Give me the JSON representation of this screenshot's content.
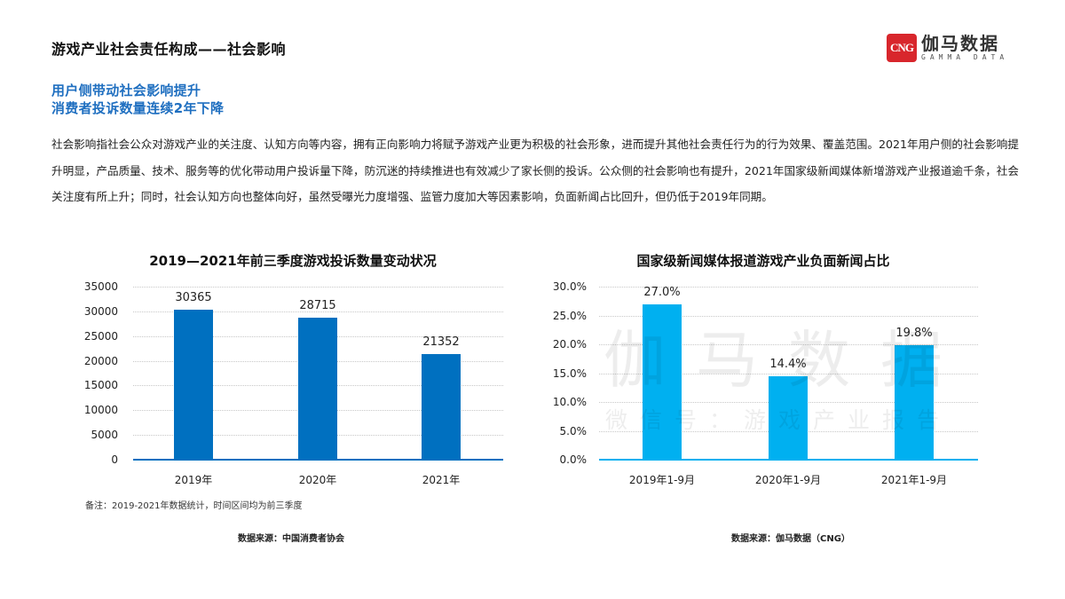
{
  "header": {
    "title": "游戏产业社会责任构成——社会影响",
    "subtitle_line1": "用户侧带动社会影响提升",
    "subtitle_line2": "消费者投诉数量连续2年下降"
  },
  "logo": {
    "mark": "CNG",
    "name_cn": "伽马数据",
    "name_en": "GAMMA DATA",
    "color": "#d8262c"
  },
  "body": {
    "paragraph": "社会影响指社会公众对游戏产业的关注度、认知方向等内容，拥有正向影响力将赋予游戏产业更为积极的社会形象，进而提升其他社会责任行为的行为效果、覆盖范围。2021年用户侧的社会影响提升明显，产品质量、技术、服务等的优化带动用户投诉量下降，防沉迷的持续推进也有效减少了家长侧的投诉。公众侧的社会影响也有提升，2021年国家级新闻媒体新增游戏产业报道逾千条，社会关注度有所上升；同时，社会认知方向也整体向好，虽然受曝光力度增强、监管力度加大等因素影响，负面新闻占比回升，但仍低于2019年同期。"
  },
  "watermark": {
    "main": "伽马数据",
    "sub": "微信号：游戏产业报告"
  },
  "chart_data": [
    {
      "type": "bar",
      "title": "2019—2021年前三季度游戏投诉数量变动状况",
      "categories": [
        "2019年",
        "2020年",
        "2021年"
      ],
      "values": [
        30365,
        28715,
        21352
      ],
      "value_labels": [
        "30365",
        "28715",
        "21352"
      ],
      "yticks": [
        "35000",
        "30000",
        "25000",
        "20000",
        "15000",
        "10000",
        "5000",
        "0"
      ],
      "ylim": [
        0,
        35000
      ],
      "xlabel": "",
      "ylabel": "",
      "grid": true,
      "legend": "none",
      "color": "#0070c0",
      "note": "备注：2019-2021年数据统计，时间区间均为前三季度",
      "source": "数据来源：中国消费者协会"
    },
    {
      "type": "bar",
      "title": "国家级新闻媒体报道游戏产业负面新闻占比",
      "categories": [
        "2019年1-9月",
        "2020年1-9月",
        "2021年1-9月"
      ],
      "values": [
        27.0,
        14.4,
        19.8
      ],
      "value_labels": [
        "27.0%",
        "14.4%",
        "19.8%"
      ],
      "yticks": [
        "30.0%",
        "25.0%",
        "20.0%",
        "15.0%",
        "10.0%",
        "5.0%",
        "0.0%"
      ],
      "ylim": [
        0,
        30
      ],
      "xlabel": "",
      "ylabel": "",
      "grid": true,
      "legend": "none",
      "color": "#00b0f0",
      "source": "数据来源：伽马数据（CNG）"
    }
  ]
}
